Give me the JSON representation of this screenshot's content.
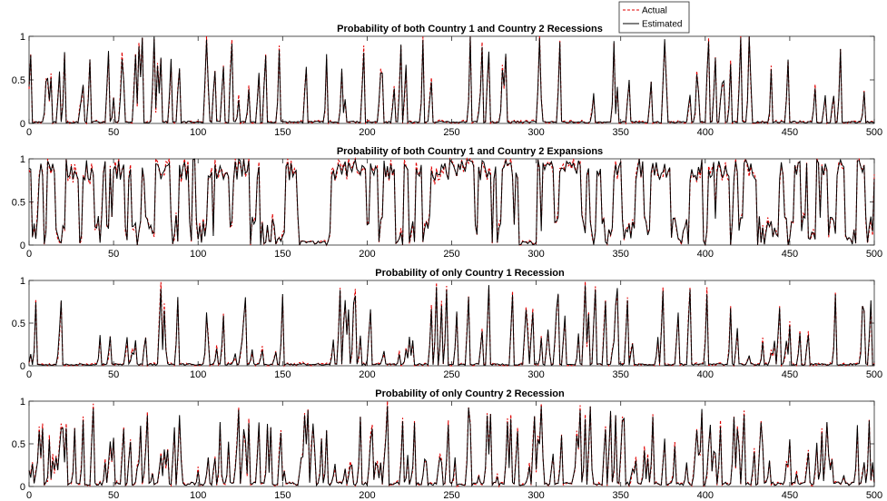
{
  "chart_data": [
    {
      "type": "line",
      "title": "Probability of both Country 1 and Country 2 Recessions",
      "xlim": [
        0,
        500
      ],
      "ylim": [
        0,
        1
      ],
      "xticks": [
        0,
        50,
        100,
        150,
        200,
        250,
        300,
        350,
        400,
        450,
        500
      ],
      "yticks": [
        0,
        0.5,
        1
      ],
      "ytick_labels": [
        "0",
        "0.5",
        "1"
      ],
      "legend": {
        "position": "top-right",
        "entries": [
          "Actual",
          "Estimated"
        ]
      },
      "series": [
        {
          "name": "Actual",
          "color": "#e00000",
          "style": "dashed",
          "seed": 11
        },
        {
          "name": "Estimated",
          "color": "#000000",
          "style": "solid",
          "seed": 11
        }
      ],
      "profile": {
        "seed": 11,
        "n": 500,
        "base": 0.02,
        "peak_prob": 0.16,
        "peak_min": 0.25,
        "peak_max": 1.0,
        "mode": "spikes"
      }
    },
    {
      "type": "line",
      "title": "Probability of both Country 1 and Country 2 Expansions",
      "xlim": [
        0,
        500
      ],
      "ylim": [
        0,
        1
      ],
      "xticks": [
        0,
        50,
        100,
        150,
        200,
        250,
        300,
        350,
        400,
        450,
        500
      ],
      "yticks": [
        0,
        0.5,
        1
      ],
      "ytick_labels": [
        "0",
        "0.5",
        "1"
      ],
      "series": [
        {
          "name": "Actual",
          "color": "#e00000",
          "style": "dashed",
          "seed": 23
        },
        {
          "name": "Estimated",
          "color": "#000000",
          "style": "solid",
          "seed": 23
        }
      ],
      "profile": {
        "seed": 23,
        "n": 500,
        "base": 0.0,
        "peak_prob": 0.45,
        "peak_min": 0.1,
        "peak_max": 1.0,
        "mode": "oscillate"
      }
    },
    {
      "type": "line",
      "title": "Probability of only Country 1 Recession",
      "xlim": [
        0,
        500
      ],
      "ylim": [
        0,
        1
      ],
      "xticks": [
        0,
        50,
        100,
        150,
        200,
        250,
        300,
        350,
        400,
        450,
        500
      ],
      "yticks": [
        0,
        0.5,
        1
      ],
      "ytick_labels": [
        "0",
        "0.5",
        "1"
      ],
      "series": [
        {
          "name": "Actual",
          "color": "#e00000",
          "style": "dashed",
          "seed": 37
        },
        {
          "name": "Estimated",
          "color": "#000000",
          "style": "solid",
          "seed": 37
        }
      ],
      "profile": {
        "seed": 37,
        "n": 500,
        "base": 0.02,
        "peak_prob": 0.18,
        "peak_min": 0.1,
        "peak_max": 0.95,
        "mode": "spikes"
      }
    },
    {
      "type": "line",
      "title": "Probability of only Country 2 Recession",
      "xlim": [
        0,
        500
      ],
      "ylim": [
        0,
        1
      ],
      "xticks": [
        0,
        50,
        100,
        150,
        200,
        250,
        300,
        350,
        400,
        450,
        500
      ],
      "yticks": [
        0,
        0.5,
        1
      ],
      "ytick_labels": [
        "0",
        "0.5",
        "1"
      ],
      "series": [
        {
          "name": "Actual",
          "color": "#e00000",
          "style": "dashed",
          "seed": 53
        },
        {
          "name": "Estimated",
          "color": "#000000",
          "style": "solid",
          "seed": 53
        }
      ],
      "profile": {
        "seed": 53,
        "n": 500,
        "base": 0.04,
        "peak_prob": 0.28,
        "peak_min": 0.1,
        "peak_max": 0.95,
        "mode": "spikes"
      }
    }
  ]
}
